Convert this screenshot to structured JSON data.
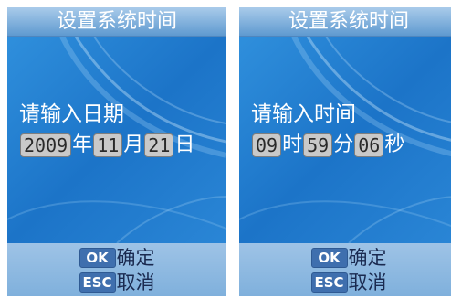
{
  "left_screen": {
    "title": "设置系统时间",
    "prompt": "请输入日期",
    "segments": [
      {
        "type": "field",
        "value": "2009"
      },
      {
        "type": "unit",
        "value": "年"
      },
      {
        "type": "field",
        "value": "11"
      },
      {
        "type": "unit",
        "value": "月"
      },
      {
        "type": "field",
        "value": "21"
      },
      {
        "type": "unit",
        "value": "日"
      }
    ],
    "ok_key": "OK",
    "ok_label": "确定",
    "esc_key": "ESC",
    "esc_label": "取消"
  },
  "right_screen": {
    "title": "设置系统时间",
    "prompt": "请输入时间",
    "segments": [
      {
        "type": "field",
        "value": "09"
      },
      {
        "type": "unit",
        "value": "时"
      },
      {
        "type": "field",
        "value": "59"
      },
      {
        "type": "unit",
        "value": "分"
      },
      {
        "type": "field",
        "value": "06"
      },
      {
        "type": "unit",
        "value": "秒"
      }
    ],
    "ok_key": "OK",
    "ok_label": "确定",
    "esc_key": "ESC",
    "esc_label": "取消"
  },
  "colors": {
    "screen_background": "#1f7fd0",
    "field_background": "#c9c9c9",
    "key_badge": "#3f6fae"
  }
}
